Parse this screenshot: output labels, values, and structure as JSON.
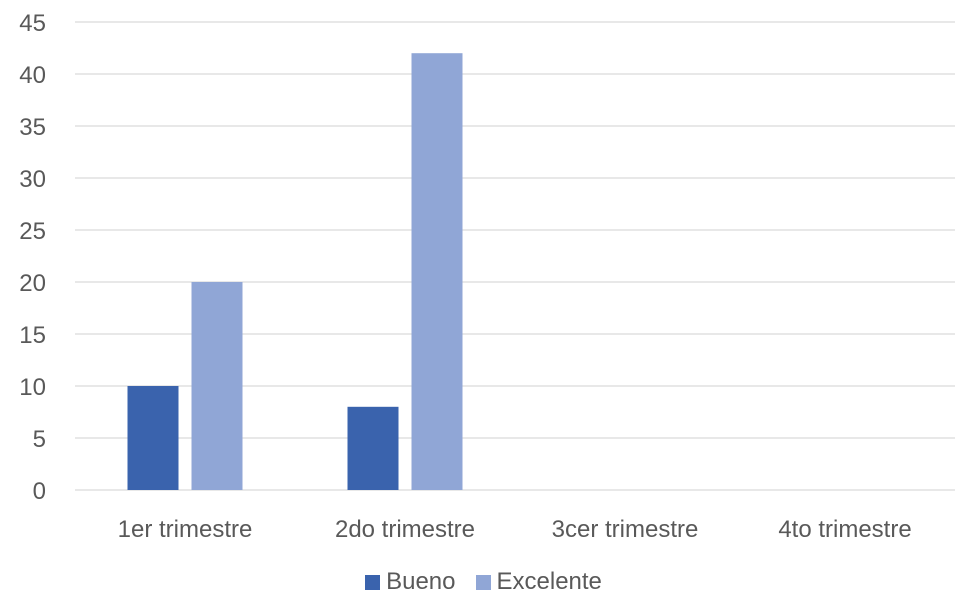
{
  "chart_data": {
    "type": "bar",
    "categories": [
      "1er trimestre",
      "2do trimestre",
      "3cer trimestre",
      "4to trimestre"
    ],
    "series": [
      {
        "name": "Bueno",
        "values": [
          10,
          8,
          null,
          null
        ],
        "color": "#3a63ad"
      },
      {
        "name": "Excelente",
        "values": [
          20,
          42,
          null,
          null
        ],
        "color": "#90a6d6"
      }
    ],
    "title": "",
    "xlabel": "",
    "ylabel": "",
    "ylim": [
      0,
      45
    ],
    "yticks": [
      "0",
      "5",
      "10",
      "15",
      "20",
      "25",
      "30",
      "35",
      "40",
      "45"
    ],
    "grid": true,
    "legend_position": "bottom",
    "gridline_color": "#d9d9d9"
  }
}
